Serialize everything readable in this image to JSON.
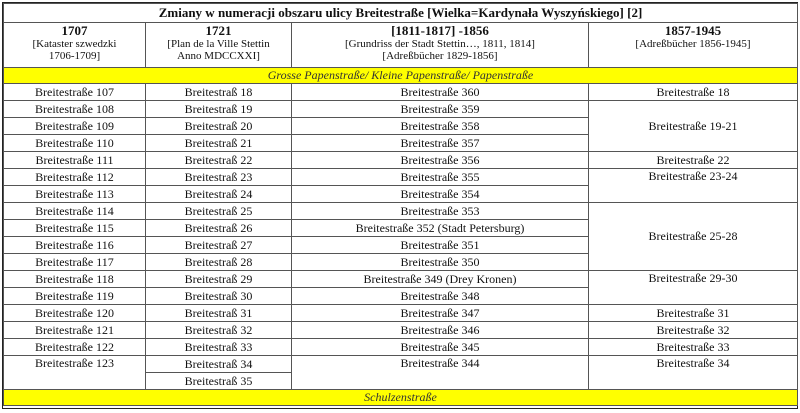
{
  "title": "Zmiany w numeracji obszaru ulicy Breitestraße [Wielka=Kardynała Wyszyńskiego] [2]",
  "columns": [
    {
      "year": "1707",
      "src1": "[Kataster szwedzki",
      "src2": "1706-1709]"
    },
    {
      "year": "1721",
      "src1": "[Plan de la Ville Stettin",
      "src2": "Anno MDCCXXI]"
    },
    {
      "year": "[1811-1817] -1856",
      "src1": "[Grundriss der Stadt Stettin…,  1811, 1814]",
      "src2": "[Adreßbücher 1829-1856]"
    },
    {
      "year": "1857-1945",
      "src1": "[Adreßbücher 1856-1945]",
      "src2": ""
    }
  ],
  "band_top": "Grosse Papenstraße/  Kleine Papenstraße/  Papenstraße",
  "band_bottom": "Schulzenstraße",
  "col1": [
    "Breitestraße 107",
    "Breitestraße 108",
    "Breitestraße 109",
    "Breitestraße 110",
    "Breitestraße 111",
    "Breitestraße 112",
    "Breitestraße 113",
    "Breitestraße 114",
    "Breitestraße 115",
    "Breitestraße 116",
    "Breitestraße 117",
    "Breitestraße 118",
    "Breitestraße 119",
    "Breitestraße 120",
    "Breitestraße 121",
    "Breitestraße 122",
    "Breitestraße 123"
  ],
  "col2": [
    "Breitestraß 18",
    "Breitestraß 19",
    "Breitestraß 20",
    "Breitestraß 21",
    "Breitestraß 22",
    "Breitestraß 23",
    "Breitestraß 24",
    "Breitestraß 25",
    "Breitestraß 26",
    "Breitestraß 27",
    "Breitestraß 28",
    "Breitestraß 29",
    "Breitestraß 30",
    "Breitestraß 31",
    "Breitestraß 32",
    "Breitestraß 33",
    "Breitestraß 34",
    "Breitestraß 35"
  ],
  "col3": [
    "Breitestraße 360",
    "Breitestraße 359",
    "Breitestraße 358",
    "Breitestraße 357",
    "Breitestraße 356",
    "Breitestraße 355",
    "Breitestraße 354",
    "Breitestraße 353",
    "Breitestraße 352 (Stadt Petersburg)",
    "Breitestraße 351",
    "Breitestraße 350",
    "Breitestraße 349 (Drey Kronen)",
    "Breitestraße 348",
    "Breitestraße 347",
    "Breitestraße 346",
    "Breitestraße 345",
    "Breitestraße 344"
  ],
  "col4": [
    "Breitestraße 18",
    "Breitestraße 19-21",
    "Breitestraße 22",
    "Breitestraße 23-24",
    "Breitestraße 25-28",
    "Breitestraße 29-30",
    "Breitestraße 31",
    "Breitestraße 32",
    "Breitestraße 33",
    "Breitestraße 34"
  ]
}
